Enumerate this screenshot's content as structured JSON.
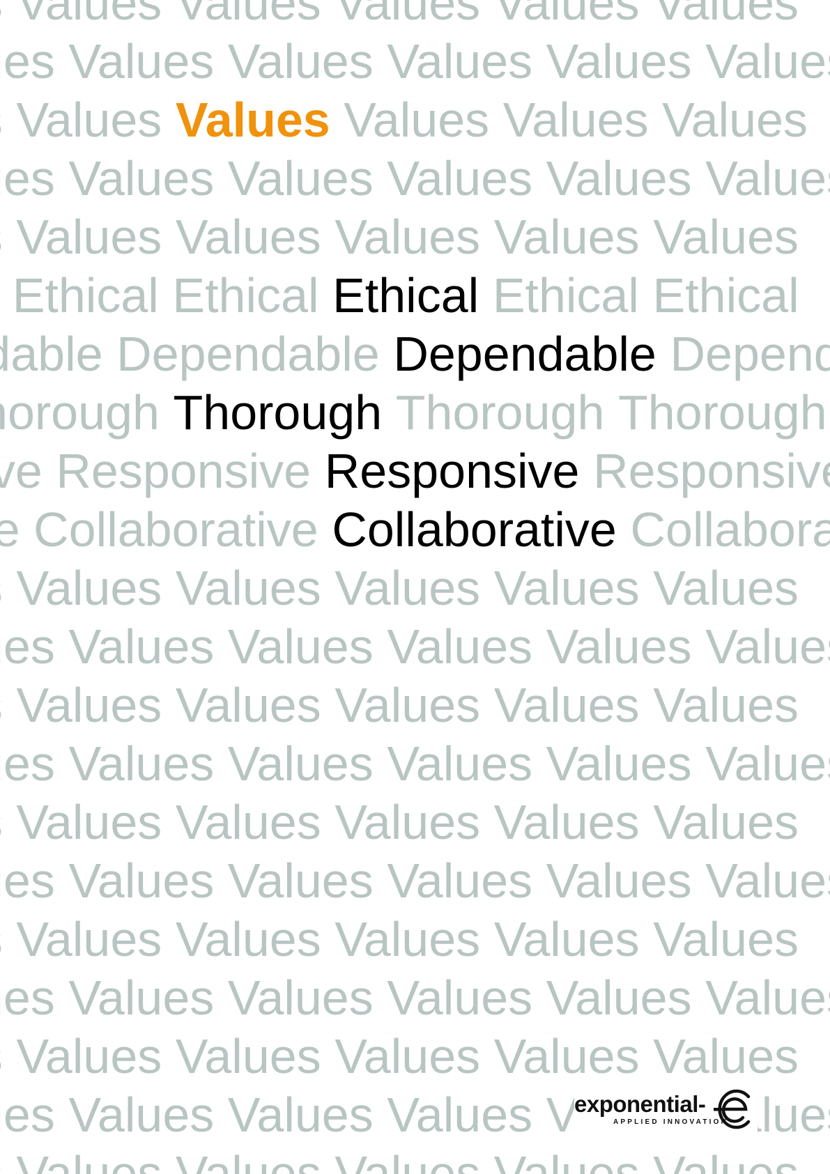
{
  "poster": {
    "rows": [
      [
        "Values",
        "Values",
        "Values",
        "Values",
        "Values",
        "Values"
      ],
      [
        "Values",
        "Values",
        "Values",
        "Values",
        "Values",
        "Values"
      ],
      [
        "Values",
        "Values",
        "Values",
        "Values",
        "Values",
        "Values"
      ],
      [
        "Values",
        "Values",
        "Values",
        "Values",
        "Values",
        "Values"
      ],
      [
        "Values",
        "Values",
        "Values",
        "Values",
        "Values",
        "Values"
      ],
      [
        "Ethical",
        "Ethical",
        "Ethical",
        "Ethical",
        "Ethical",
        "Ethical"
      ],
      [
        "Dependable",
        "Dependable",
        "Dependable",
        "Dependable"
      ],
      [
        "Thorough",
        "Thorough",
        "Thorough",
        "Thorough",
        "Thorough"
      ],
      [
        "Responsive",
        "Responsive",
        "Responsive",
        "Responsive"
      ],
      [
        "Collaborative",
        "Collaborative",
        "Collaborative",
        "Collaborative"
      ],
      [
        "Values",
        "Values",
        "Values",
        "Values",
        "Values",
        "Values"
      ],
      [
        "Values",
        "Values",
        "Values",
        "Values",
        "Values",
        "Values"
      ],
      [
        "Values",
        "Values",
        "Values",
        "Values",
        "Values",
        "Values"
      ],
      [
        "Values",
        "Values",
        "Values",
        "Values",
        "Values",
        "Values"
      ],
      [
        "Values",
        "Values",
        "Values",
        "Values",
        "Values",
        "Values"
      ],
      [
        "Values",
        "Values",
        "Values",
        "Values",
        "Values",
        "Values"
      ],
      [
        "Values",
        "Values",
        "Values",
        "Values",
        "Values",
        "Values"
      ],
      [
        "Values",
        "Values",
        "Values",
        "Values",
        "Values",
        "Values"
      ],
      [
        "Values",
        "Values",
        "Values",
        "Values",
        "Values",
        "Values"
      ],
      [
        "Values",
        "Values",
        "Values",
        "Values",
        "Values",
        "Values"
      ],
      [
        "Values",
        "Values",
        "Values",
        "Values",
        "Values",
        "Values"
      ]
    ],
    "highlights": [
      {
        "row": 2,
        "word": 2,
        "style": "orange"
      },
      {
        "row": 5,
        "word": 3,
        "style": "black"
      },
      {
        "row": 6,
        "word": 2,
        "style": "black"
      },
      {
        "row": 7,
        "word": 2,
        "style": "black"
      },
      {
        "row": 8,
        "word": 2,
        "style": "black"
      },
      {
        "row": 9,
        "word": 2,
        "style": "black"
      }
    ],
    "colors": {
      "background_text": "#b8c5c2",
      "highlight_orange": "#f0920c",
      "highlight_black": "#000000",
      "page": "#ffffff"
    }
  },
  "logo": {
    "wordmark": "exponential-",
    "tagline": "APPLIED INNOVATION",
    "icon": "e-in-circle-logo-icon"
  }
}
